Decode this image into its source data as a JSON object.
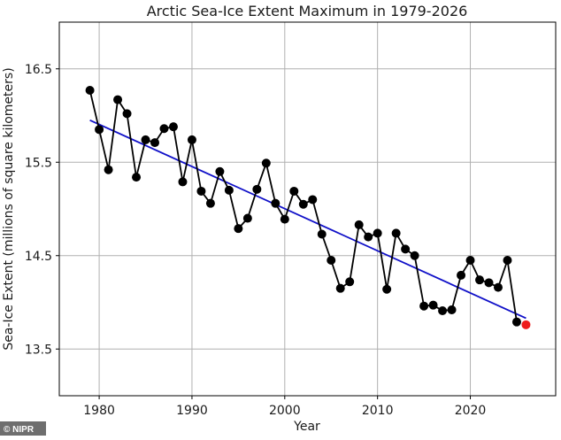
{
  "credit": "© NIPR",
  "chart_data": {
    "type": "line",
    "title": "Arctic Sea-Ice Extent Maximum in 1979-2026",
    "xlabel": "Year",
    "ylabel": "Sea-Ice Extent (millions of square kilometers)",
    "xlim": [
      1975.7,
      2029.2
    ],
    "ylim": [
      13.0,
      17.0
    ],
    "xticks": [
      1980,
      1990,
      2000,
      2010,
      2020
    ],
    "yticks": [
      13.5,
      14.5,
      15.5,
      16.5
    ],
    "grid": true,
    "series": [
      {
        "x": [
          1979,
          1980,
          1981,
          1982,
          1983,
          1984,
          1985,
          1986,
          1987,
          1988,
          1989,
          1990,
          1991,
          1992,
          1993,
          1994,
          1995,
          1996,
          1997,
          1998,
          1999,
          2000,
          2001,
          2002,
          2003,
          2004,
          2005,
          2006,
          2007,
          2008,
          2009,
          2010,
          2011,
          2012,
          2013,
          2014,
          2015,
          2016,
          2017,
          2018,
          2019,
          2020,
          2021,
          2022,
          2023,
          2024,
          2025
        ],
        "values": [
          16.27,
          15.85,
          15.42,
          16.17,
          16.02,
          15.34,
          15.74,
          15.71,
          15.86,
          15.88,
          15.29,
          15.74,
          15.19,
          15.06,
          15.4,
          15.2,
          14.79,
          14.9,
          15.21,
          15.49,
          15.06,
          14.89,
          15.19,
          15.05,
          15.1,
          14.73,
          14.45,
          14.15,
          14.22,
          14.83,
          14.7,
          14.74,
          14.14,
          14.74,
          14.57,
          14.5,
          13.96,
          13.97,
          13.91,
          13.92,
          14.29,
          14.45,
          14.24,
          14.21,
          14.16,
          14.45,
          13.79
        ],
        "color": "#000000"
      },
      {
        "x": [
          2026
        ],
        "values": [
          13.76
        ],
        "color": "#ee1c1c"
      }
    ],
    "trend": {
      "x": [
        1979,
        2026
      ],
      "values": [
        15.95,
        13.83
      ],
      "color": "#1010c8"
    }
  }
}
